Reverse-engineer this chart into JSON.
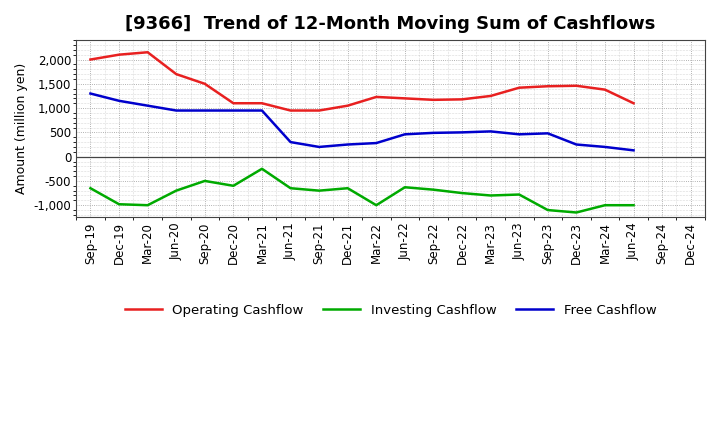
{
  "title": "[9366]  Trend of 12-Month Moving Sum of Cashflows",
  "ylabel": "Amount (million yen)",
  "xlabels": [
    "Sep-19",
    "Dec-19",
    "Mar-20",
    "Jun-20",
    "Sep-20",
    "Dec-20",
    "Mar-21",
    "Jun-21",
    "Sep-21",
    "Dec-21",
    "Mar-22",
    "Jun-22",
    "Sep-22",
    "Dec-22",
    "Mar-23",
    "Jun-23",
    "Sep-23",
    "Dec-23",
    "Mar-24",
    "Jun-24",
    "Sep-24",
    "Dec-24"
  ],
  "operating": [
    2000,
    2100,
    2150,
    1700,
    1500,
    1100,
    1100,
    950,
    950,
    1050,
    1230,
    1200,
    1170,
    1180,
    1250,
    1420,
    1450,
    1460,
    1380,
    1100,
    null,
    null
  ],
  "investing": [
    -650,
    -980,
    -1000,
    -700,
    -500,
    -600,
    -250,
    -650,
    -700,
    -650,
    -1000,
    -630,
    -680,
    -750,
    -800,
    -780,
    -1100,
    -1150,
    -1000,
    -1000,
    null,
    null
  ],
  "free": [
    1300,
    1150,
    1050,
    950,
    950,
    950,
    950,
    300,
    200,
    250,
    280,
    460,
    490,
    500,
    520,
    460,
    480,
    250,
    200,
    130,
    null,
    null
  ],
  "operating_color": "#e82020",
  "investing_color": "#00aa00",
  "free_color": "#0000cc",
  "ylim": [
    -1250,
    2400
  ],
  "yticks": [
    -1000,
    -500,
    0,
    500,
    1000,
    1500,
    2000
  ],
  "background_color": "#ffffff",
  "plot_bg_color": "#ffffff",
  "grid_color": "#999999",
  "title_fontsize": 13,
  "axis_fontsize": 8.5,
  "legend_fontsize": 9.5
}
